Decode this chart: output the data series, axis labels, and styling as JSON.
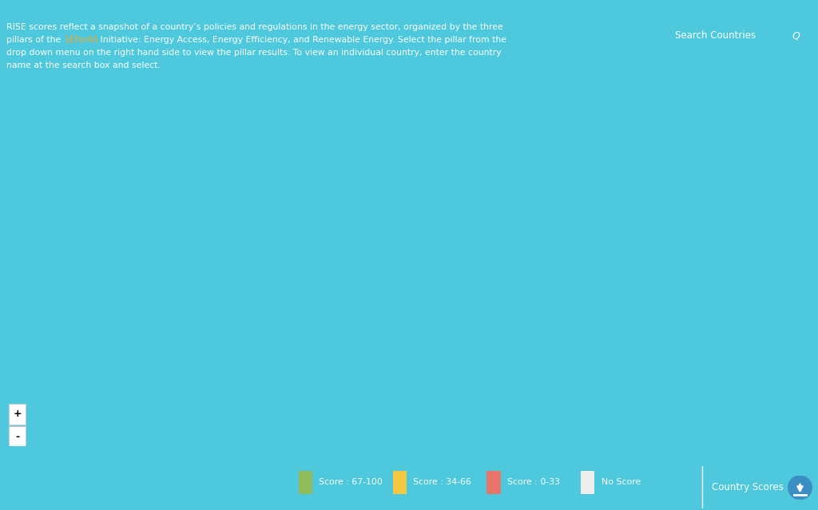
{
  "background_color": "#4DC8DC",
  "ocean_color": "#4BBDD0",
  "title_color": "#FFFFFF",
  "seforall_color": "#F0A830",
  "search_label": "Search Countries",
  "legend_items": [
    {
      "label": "Score : 67-100",
      "color": "#8FBB5A"
    },
    {
      "label": "Score : 34-66",
      "color": "#F5C842"
    },
    {
      "label": "Score : 0-33",
      "color": "#E8756A"
    },
    {
      "label": "No Score",
      "color": "#EEEEEE"
    }
  ],
  "country_colors": {
    "USA": "#8FBB5A",
    "CAN": "#8FBB5A",
    "MEX": "#F5C842",
    "GTM": "#F5C842",
    "BLZ": "#F5C842",
    "HND": "#F5C842",
    "SLV": "#F5C842",
    "NIC": "#F5C842",
    "CRI": "#F5C842",
    "PAN": "#F5C842",
    "CUB": "#F5C842",
    "JAM": "#F5C842",
    "HTI": "#E8756A",
    "DOM": "#F5C842",
    "TTO": "#F5C842",
    "COL": "#F5C842",
    "VEN": "#F5C842",
    "GUY": "#F5C842",
    "SUR": "#F5C842",
    "ECU": "#F5C842",
    "PER": "#F5C842",
    "BOL": "#F5C842",
    "BRA": "#F5C842",
    "PRY": "#F5C842",
    "CHL": "#8FBB5A",
    "ARG": "#F5C842",
    "URY": "#8FBB5A",
    "GBR": "#8FBB5A",
    "IRL": "#8FBB5A",
    "ISL": "#8FBB5A",
    "NOR": "#8FBB5A",
    "SWE": "#8FBB5A",
    "FIN": "#8FBB5A",
    "DNK": "#8FBB5A",
    "NLD": "#8FBB5A",
    "BEL": "#8FBB5A",
    "DEU": "#8FBB5A",
    "FRA": "#8FBB5A",
    "ESP": "#8FBB5A",
    "PRT": "#8FBB5A",
    "ITA": "#8FBB5A",
    "CHE": "#8FBB5A",
    "AUT": "#8FBB5A",
    "POL": "#F5C842",
    "CZE": "#8FBB5A",
    "SVK": "#F5C842",
    "HUN": "#F5C842",
    "ROU": "#F5C842",
    "BGR": "#F5C842",
    "GRC": "#8FBB5A",
    "HRV": "#F5C842",
    "SRB": "#F5C842",
    "ALB": "#F5C842",
    "MKD": "#F5C842",
    "BIH": "#F5C842",
    "MNE": "#F5C842",
    "SVN": "#8FBB5A",
    "LVA": "#8FBB5A",
    "LTU": "#8FBB5A",
    "EST": "#8FBB5A",
    "BLR": "#F5C842",
    "UKR": "#F5C842",
    "MDA": "#F5C842",
    "RUS": "#F5C842",
    "KAZ": "#F5C842",
    "UZB": "#E8756A",
    "TKM": "#E8756A",
    "TJK": "#E8756A",
    "KGZ": "#E8756A",
    "AZE": "#F5C842",
    "ARM": "#F5C842",
    "GEO": "#F5C842",
    "TUR": "#F5C842",
    "SYR": "#E8756A",
    "LBN": "#F5C842",
    "ISR": "#8FBB5A",
    "JOR": "#F5C842",
    "SAU": "#E8756A",
    "YEM": "#E8756A",
    "OMN": "#E8756A",
    "ARE": "#F5C842",
    "QAT": "#E8756A",
    "KWT": "#E8756A",
    "IRQ": "#E8756A",
    "IRN": "#E8756A",
    "AFG": "#E8756A",
    "PAK": "#F5C842",
    "IND": "#8FBB5A",
    "BGD": "#F5C842",
    "LKA": "#F5C842",
    "NPL": "#F5C842",
    "BTN": "#F5C842",
    "MMR": "#F5C842",
    "THA": "#F5C842",
    "VNM": "#F5C842",
    "KHM": "#F5C842",
    "LAO": "#F5C842",
    "MYS": "#F5C842",
    "SGP": "#F5C842",
    "IDN": "#F5C842",
    "PHL": "#F5C842",
    "CHN": "#8FBB5A",
    "MNG": "#F5C842",
    "KOR": "#8FBB5A",
    "JPN": "#8FBB5A",
    "EGY": "#F5C842",
    "LBY": "#E8756A",
    "TUN": "#F5C842",
    "DZA": "#F5C842",
    "MAR": "#8FBB5A",
    "MRT": "#E8756A",
    "MLI": "#E8756A",
    "NER": "#E8756A",
    "TCD": "#E8756A",
    "SDN": "#E8756A",
    "SSD": "#E8756A",
    "SOM": "#E8756A",
    "ETH": "#F5C842",
    "ERI": "#E8756A",
    "DJI": "#E8756A",
    "SEN": "#F5C842",
    "GMB": "#E8756A",
    "GNB": "#E8756A",
    "GIN": "#E8756A",
    "SLE": "#E8756A",
    "LBR": "#E8756A",
    "CIV": "#F5C842",
    "GHA": "#F5C842",
    "TGO": "#E8756A",
    "BEN": "#E8756A",
    "NGA": "#E8756A",
    "CMR": "#E8756A",
    "CAF": "#E8756A",
    "COD": "#E8756A",
    "COG": "#E8756A",
    "GNQ": "#E8756A",
    "GAB": "#F5C842",
    "AGO": "#F5C842",
    "ZMB": "#F5C842",
    "ZWE": "#F5C842",
    "MOZ": "#F5C842",
    "MDG": "#F5C842",
    "TZA": "#F5C842",
    "KEN": "#8FBB5A",
    "UGA": "#F5C842",
    "RWA": "#8FBB5A",
    "BDI": "#E8756A",
    "MWI": "#F5C842",
    "BWA": "#F5C842",
    "NAM": "#F5C842",
    "ZAF": "#8FBB5A",
    "LSO": "#F5C842",
    "SWZ": "#F5C842",
    "BFA": "#F5C842",
    "AUS": "#8FBB5A",
    "NZL": "#8FBB5A",
    "PNG": "#F5C842",
    "FJI": "#F5C842",
    "ATA": "#FFFFFF"
  },
  "no_score_color": "#EEEEEE",
  "edge_color": "#FFFFFF",
  "edge_linewidth": 0.3,
  "map_xlim": [
    -180,
    180
  ],
  "map_ylim": [
    -58,
    84
  ],
  "footer_separator_color": "#FFFFFF",
  "country_scores_button_color": "#3B8EC4"
}
